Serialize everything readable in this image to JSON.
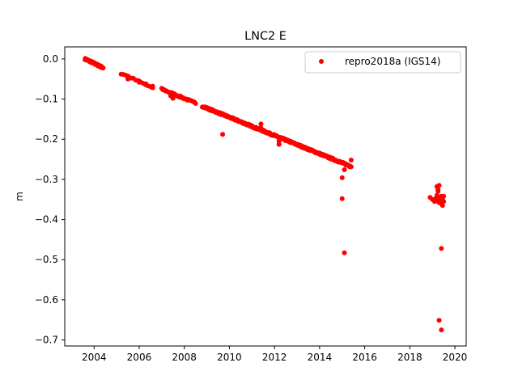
{
  "chart_data": {
    "type": "scatter",
    "title": "LNC2 E",
    "xlabel": "",
    "ylabel": "m",
    "xlim": [
      2002.7,
      2020.5
    ],
    "ylim": [
      -0.715,
      0.03
    ],
    "xticks": [
      2004,
      2006,
      2008,
      2010,
      2012,
      2014,
      2016,
      2018,
      2020
    ],
    "yticks": [
      0.0,
      -0.1,
      -0.2,
      -0.3,
      -0.4,
      -0.5,
      -0.6,
      -0.7
    ],
    "ytick_labels": [
      "0.0",
      "−0.1",
      "−0.2",
      "−0.3",
      "−0.4",
      "−0.5",
      "−0.6",
      "−0.7"
    ],
    "legend": {
      "position": "upper right",
      "label": "repro2018a (IGS14)"
    },
    "marker_color": "#ff0000",
    "series": [
      {
        "name": "repro2018a (IGS14)",
        "segments": [
          {
            "x_start": 2003.6,
            "x_end": 2004.4,
            "y_start": 0.0,
            "y_end": -0.022,
            "n": 60
          },
          {
            "x_start": 2005.3,
            "x_end": 2006.5,
            "y_start": -0.038,
            "y_end": -0.07,
            "n": 12
          },
          {
            "x_start": 2007.0,
            "x_end": 2008.5,
            "y_start": -0.075,
            "y_end": -0.11,
            "n": 30
          },
          {
            "x_start": 2008.8,
            "x_end": 2015.4,
            "y_start": -0.118,
            "y_end": -0.268,
            "n": 320
          }
        ],
        "points": [
          {
            "x": 2005.2,
            "y": -0.038
          },
          {
            "x": 2005.5,
            "y": -0.045
          },
          {
            "x": 2005.5,
            "y": -0.05
          },
          {
            "x": 2006.0,
            "y": -0.055
          },
          {
            "x": 2006.0,
            "y": -0.058
          },
          {
            "x": 2006.3,
            "y": -0.062
          },
          {
            "x": 2006.6,
            "y": -0.068
          },
          {
            "x": 2006.6,
            "y": -0.072
          },
          {
            "x": 2007.4,
            "y": -0.092
          },
          {
            "x": 2007.5,
            "y": -0.098
          },
          {
            "x": 2007.8,
            "y": -0.095
          },
          {
            "x": 2009.7,
            "y": -0.188
          },
          {
            "x": 2011.4,
            "y": -0.162
          },
          {
            "x": 2011.4,
            "y": -0.172
          },
          {
            "x": 2012.2,
            "y": -0.205
          },
          {
            "x": 2012.2,
            "y": -0.213
          },
          {
            "x": 2015.0,
            "y": -0.296
          },
          {
            "x": 2015.0,
            "y": -0.348
          },
          {
            "x": 2015.1,
            "y": -0.276
          },
          {
            "x": 2015.1,
            "y": -0.483
          },
          {
            "x": 2015.4,
            "y": -0.252
          },
          {
            "x": 2018.9,
            "y": -0.345
          },
          {
            "x": 2019.0,
            "y": -0.35
          },
          {
            "x": 2019.1,
            "y": -0.355
          },
          {
            "x": 2019.15,
            "y": -0.348
          },
          {
            "x": 2019.2,
            "y": -0.352
          },
          {
            "x": 2019.2,
            "y": -0.34
          },
          {
            "x": 2019.2,
            "y": -0.318
          },
          {
            "x": 2019.25,
            "y": -0.325
          },
          {
            "x": 2019.25,
            "y": -0.33
          },
          {
            "x": 2019.3,
            "y": -0.315
          },
          {
            "x": 2019.3,
            "y": -0.345
          },
          {
            "x": 2019.3,
            "y": -0.358
          },
          {
            "x": 2019.35,
            "y": -0.35
          },
          {
            "x": 2019.35,
            "y": -0.355
          },
          {
            "x": 2019.4,
            "y": -0.342
          },
          {
            "x": 2019.4,
            "y": -0.36
          },
          {
            "x": 2019.45,
            "y": -0.365
          },
          {
            "x": 2019.45,
            "y": -0.35
          },
          {
            "x": 2019.5,
            "y": -0.342
          },
          {
            "x": 2019.5,
            "y": -0.355
          },
          {
            "x": 2019.4,
            "y": -0.472
          },
          {
            "x": 2019.3,
            "y": -0.651
          },
          {
            "x": 2019.4,
            "y": -0.675
          }
        ]
      }
    ]
  }
}
